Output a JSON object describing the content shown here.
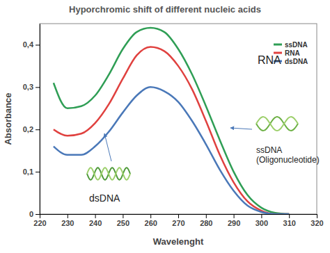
{
  "chart_data": {
    "type": "line",
    "title": "Hyporchromic shift of different nucleic acids",
    "x_label": "Wavelenght",
    "y_label": "Absorbance",
    "x": [
      225,
      230,
      235,
      240,
      245,
      250,
      255,
      260,
      265,
      270,
      275,
      280,
      285,
      290,
      295,
      300,
      305,
      310
    ],
    "series": [
      {
        "name": "ssDNA",
        "color": "#2f9e55",
        "values": [
          0.31,
          0.25,
          0.255,
          0.28,
          0.33,
          0.39,
          0.43,
          0.44,
          0.43,
          0.39,
          0.33,
          0.255,
          0.175,
          0.1,
          0.045,
          0.015,
          0.003,
          0
        ]
      },
      {
        "name": "RNA",
        "color": "#e0413f",
        "values": [
          0.2,
          0.185,
          0.19,
          0.215,
          0.26,
          0.32,
          0.375,
          0.395,
          0.385,
          0.35,
          0.295,
          0.22,
          0.14,
          0.075,
          0.03,
          0.008,
          0,
          0
        ]
      },
      {
        "name": "dsDNA",
        "color": "#4a78b8",
        "values": [
          0.16,
          0.14,
          0.14,
          0.16,
          0.195,
          0.24,
          0.28,
          0.3,
          0.29,
          0.265,
          0.22,
          0.165,
          0.105,
          0.055,
          0.02,
          0.005,
          0,
          0
        ]
      }
    ],
    "xlim": [
      220,
      320
    ],
    "xticks": [
      220,
      230,
      240,
      250,
      260,
      270,
      280,
      290,
      300,
      310,
      320
    ],
    "ylim": [
      0,
      0.45
    ],
    "yticks": [
      0,
      {
        "value": 0.1,
        "label": "0,1"
      },
      {
        "value": 0.2,
        "label": "0,2"
      },
      {
        "value": 0.3,
        "label": "0,3"
      },
      {
        "value": 0.4,
        "label": "0,4"
      }
    ],
    "grid": false,
    "legend": "upper right",
    "annotations": [
      "RNA",
      "dsDNA",
      "ssDNA",
      "(Oligonucleotide)"
    ]
  }
}
